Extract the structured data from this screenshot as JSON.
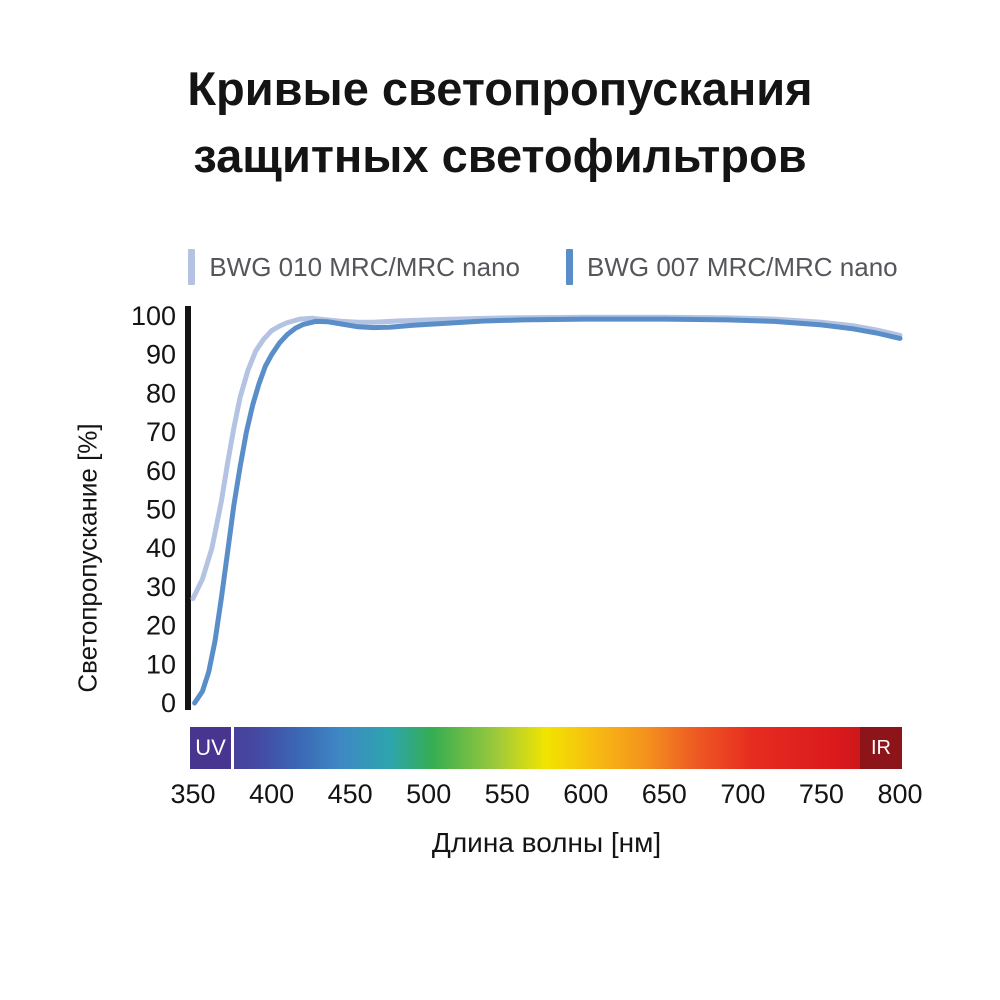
{
  "title": {
    "line1": "Кривые светопропускания",
    "line2": "защитных светофильтров"
  },
  "chart_data": {
    "type": "line",
    "title": "Кривые светопропускания защитных светофильтров",
    "xlabel": "Длина волны [нм]",
    "ylabel": "Светопропускание [%]",
    "xlim": [
      350,
      800
    ],
    "ylim": [
      0,
      100
    ],
    "x_ticks": [
      350,
      400,
      450,
      500,
      550,
      600,
      650,
      700,
      750,
      800
    ],
    "y_ticks": [
      0,
      10,
      20,
      30,
      40,
      50,
      60,
      70,
      80,
      90,
      100
    ],
    "grid": false,
    "legend_position": "top",
    "series": [
      {
        "name": "BWG 010 MRC/MRC nano",
        "color": "#b4c3e2",
        "points": [
          [
            350,
            27
          ],
          [
            356,
            32
          ],
          [
            362,
            40
          ],
          [
            368,
            52
          ],
          [
            372,
            62
          ],
          [
            376,
            71
          ],
          [
            380,
            79
          ],
          [
            385,
            86
          ],
          [
            390,
            91
          ],
          [
            395,
            94
          ],
          [
            400,
            96.2
          ],
          [
            405,
            97.4
          ],
          [
            410,
            98.3
          ],
          [
            418,
            99.2
          ],
          [
            426,
            99.4
          ],
          [
            435,
            99
          ],
          [
            445,
            98.6
          ],
          [
            455,
            98.4
          ],
          [
            465,
            98.4
          ],
          [
            480,
            98.7
          ],
          [
            500,
            99
          ],
          [
            525,
            99.3
          ],
          [
            550,
            99.5
          ],
          [
            600,
            99.7
          ],
          [
            650,
            99.7
          ],
          [
            690,
            99.5
          ],
          [
            720,
            99.2
          ],
          [
            750,
            98.4
          ],
          [
            770,
            97.5
          ],
          [
            785,
            96.4
          ],
          [
            800,
            95
          ]
        ]
      },
      {
        "name": "BWG 007 MRC/MRC nano",
        "color": "#5a8ec9",
        "points": [
          [
            351,
            0
          ],
          [
            356,
            3
          ],
          [
            360,
            8
          ],
          [
            364,
            16
          ],
          [
            368,
            27
          ],
          [
            372,
            39
          ],
          [
            376,
            51
          ],
          [
            380,
            61
          ],
          [
            384,
            70
          ],
          [
            388,
            77
          ],
          [
            392,
            82.5
          ],
          [
            396,
            87
          ],
          [
            400,
            90
          ],
          [
            405,
            93
          ],
          [
            410,
            95.2
          ],
          [
            415,
            96.8
          ],
          [
            420,
            97.8
          ],
          [
            428,
            98.6
          ],
          [
            436,
            98.5
          ],
          [
            445,
            97.9
          ],
          [
            455,
            97.2
          ],
          [
            465,
            97
          ],
          [
            475,
            97.1
          ],
          [
            490,
            97.6
          ],
          [
            510,
            98.1
          ],
          [
            535,
            98.7
          ],
          [
            560,
            99
          ],
          [
            600,
            99.2
          ],
          [
            650,
            99.2
          ],
          [
            690,
            99
          ],
          [
            720,
            98.6
          ],
          [
            750,
            97.7
          ],
          [
            770,
            96.7
          ],
          [
            785,
            95.6
          ],
          [
            800,
            94.2
          ]
        ]
      }
    ],
    "spectrum_bar": {
      "uv_label": "UV",
      "ir_label": "IR",
      "uv_color": "#473590",
      "ir_color": "#8d1418",
      "gradient": [
        {
          "pos": 0.0,
          "color": "#473690"
        },
        {
          "pos": 0.09,
          "color": "#4547a0"
        },
        {
          "pos": 0.15,
          "color": "#3b66b4"
        },
        {
          "pos": 0.21,
          "color": "#3e88c4"
        },
        {
          "pos": 0.28,
          "color": "#2ea4ae"
        },
        {
          "pos": 0.34,
          "color": "#35ad52"
        },
        {
          "pos": 0.43,
          "color": "#9cc93b"
        },
        {
          "pos": 0.5,
          "color": "#f2e400"
        },
        {
          "pos": 0.57,
          "color": "#f7ba12"
        },
        {
          "pos": 0.64,
          "color": "#f4921d"
        },
        {
          "pos": 0.71,
          "color": "#ee5a23"
        },
        {
          "pos": 0.79,
          "color": "#e62c20"
        },
        {
          "pos": 0.91,
          "color": "#da191c"
        },
        {
          "pos": 1.0,
          "color": "#b61518"
        }
      ]
    }
  }
}
